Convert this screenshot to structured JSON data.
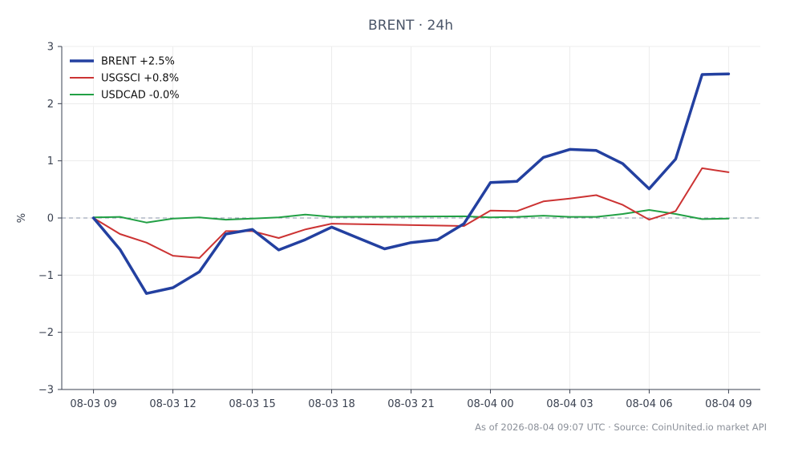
{
  "chart_data": {
    "type": "line",
    "title": "BRENT · 24h",
    "xlabel": "",
    "ylabel": "%",
    "ylim": [
      -3,
      3
    ],
    "yticks": [
      3,
      2,
      1,
      0,
      -1,
      -2,
      -3
    ],
    "ytick_labels": [
      "3",
      "2",
      "1",
      "0",
      "−1",
      "−2",
      "−3"
    ],
    "xlim": [
      -1.2,
      25.2
    ],
    "xticks": [
      0,
      3,
      6,
      9,
      12,
      15,
      18,
      21,
      24
    ],
    "xtick_labels": [
      "08-03 09",
      "08-03 12",
      "08-03 15",
      "08-03 18",
      "08-03 21",
      "08-04 00",
      "08-04 03",
      "08-04 06",
      "08-04 09"
    ],
    "grid": true,
    "legend_position": "top-left",
    "reference_line": 0,
    "series": [
      {
        "name": "BRENT +2.5%",
        "color": "#2340a0",
        "width": 3.5,
        "points": [
          [
            0,
            0.0
          ],
          [
            1,
            -0.55
          ],
          [
            2,
            -1.32
          ],
          [
            3,
            -1.22
          ],
          [
            4,
            -0.94
          ],
          [
            5,
            -0.28
          ],
          [
            6,
            -0.2
          ],
          [
            7,
            -0.56
          ],
          [
            8,
            -0.38
          ],
          [
            9,
            -0.16
          ],
          [
            10,
            -0.35
          ],
          [
            11,
            -0.54
          ],
          [
            12,
            -0.43
          ],
          [
            13,
            -0.38
          ],
          [
            14,
            -0.1
          ],
          [
            15,
            0.62
          ],
          [
            16,
            0.64
          ],
          [
            17,
            1.06
          ],
          [
            18,
            1.2
          ],
          [
            19,
            1.18
          ],
          [
            20,
            0.95
          ],
          [
            21,
            0.51
          ],
          [
            22,
            1.03
          ],
          [
            23,
            2.51
          ],
          [
            24,
            2.52
          ]
        ]
      },
      {
        "name": "USGSCI +0.8%",
        "color": "#cc3333",
        "width": 2,
        "points": [
          [
            0,
            0.0
          ],
          [
            1,
            -0.28
          ],
          [
            2,
            -0.43
          ],
          [
            3,
            -0.66
          ],
          [
            4,
            -0.7
          ],
          [
            5,
            -0.23
          ],
          [
            6,
            -0.23
          ],
          [
            7,
            -0.35
          ],
          [
            8,
            -0.2
          ],
          [
            9,
            -0.1
          ],
          [
            14,
            -0.14
          ],
          [
            15,
            0.13
          ],
          [
            16,
            0.12
          ],
          [
            17,
            0.29
          ],
          [
            18,
            0.34
          ],
          [
            19,
            0.4
          ],
          [
            20,
            0.23
          ],
          [
            21,
            -0.03
          ],
          [
            22,
            0.12
          ],
          [
            23,
            0.87
          ],
          [
            24,
            0.8
          ]
        ]
      },
      {
        "name": "USDCAD -0.0%",
        "color": "#22a045",
        "width": 2,
        "points": [
          [
            0,
            0.01
          ],
          [
            1,
            0.02
          ],
          [
            2,
            -0.08
          ],
          [
            3,
            -0.01
          ],
          [
            4,
            0.01
          ],
          [
            5,
            -0.03
          ],
          [
            6,
            -0.01
          ],
          [
            7,
            0.01
          ],
          [
            8,
            0.06
          ],
          [
            9,
            0.02
          ],
          [
            14,
            0.03
          ],
          [
            15,
            0.01
          ],
          [
            16,
            0.02
          ],
          [
            17,
            0.04
          ],
          [
            18,
            0.02
          ],
          [
            19,
            0.02
          ],
          [
            20,
            0.07
          ],
          [
            21,
            0.14
          ],
          [
            22,
            0.07
          ],
          [
            23,
            -0.02
          ],
          [
            24,
            -0.01
          ]
        ]
      }
    ],
    "footer": "As of 2026-08-04 09:07 UTC · Source: CoinUnited.io market API"
  }
}
